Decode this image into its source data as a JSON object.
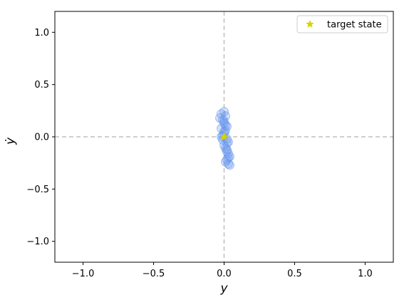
{
  "chart_data": {
    "type": "scatter",
    "title": "",
    "xlabel": "y",
    "ylabel": "ẏ",
    "xlim": [
      -1.2,
      1.2
    ],
    "ylim": [
      -1.2,
      1.2
    ],
    "xticks": [
      -1.0,
      -0.5,
      0.0,
      0.5,
      1.0
    ],
    "yticks": [
      -1.0,
      -0.5,
      0.0,
      0.5,
      1.0
    ],
    "xtick_labels": [
      "−1.0",
      "−0.5",
      "0.0",
      "0.5",
      "1.0"
    ],
    "ytick_labels": [
      "−1.0",
      "−0.5",
      "0.0",
      "0.5",
      "1.0"
    ],
    "grid": false,
    "reference_lines": {
      "x": 0,
      "y": 0,
      "style": "dashed",
      "color": "#bfbfbf"
    },
    "legend": {
      "placement": "top-right",
      "entries": [
        "target state"
      ]
    },
    "series": [
      {
        "marker": "circle",
        "color": "#6495ed",
        "x": [
          -0.02,
          0.0,
          0.01,
          -0.01,
          0.0,
          0.02,
          -0.02,
          0.01,
          0.0,
          -0.01,
          0.02,
          0.03,
          0.0,
          0.01,
          0.02,
          0.03,
          0.04,
          0.02,
          0.01,
          0.03,
          -0.03,
          0.0,
          -0.01,
          0.02,
          0.01,
          0.03,
          0.04,
          0.02,
          0.0,
          -0.02
        ],
        "y": [
          0.22,
          0.24,
          0.2,
          0.16,
          0.13,
          0.1,
          0.08,
          0.06,
          0.03,
          0.01,
          -0.02,
          -0.05,
          -0.08,
          -0.11,
          -0.14,
          -0.16,
          -0.19,
          -0.22,
          -0.24,
          -0.26,
          0.18,
          0.05,
          -0.03,
          -0.12,
          0.11,
          -0.2,
          -0.27,
          -0.06,
          0.15,
          0.0
        ]
      },
      {
        "name": "target state",
        "marker": "star",
        "color": "#d4d400",
        "x": [
          0.0
        ],
        "y": [
          0.0
        ]
      }
    ]
  }
}
